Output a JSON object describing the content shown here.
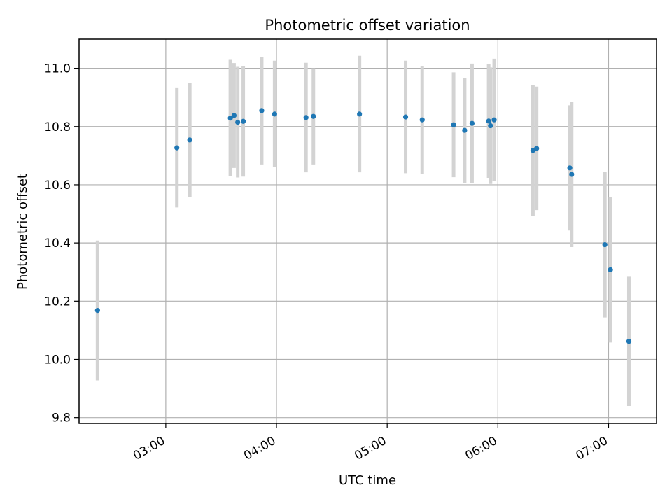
{
  "chart_data": {
    "type": "scatter",
    "title": "Photometric offset variation",
    "xlabel": "UTC time",
    "ylabel": "Photometric offset",
    "grid": true,
    "xlim": [
      "02:13",
      "07:26"
    ],
    "ylim": [
      9.78,
      11.1
    ],
    "x_ticks": [
      "03:00",
      "04:00",
      "05:00",
      "06:00",
      "07:00"
    ],
    "y_ticks": [
      "9.8",
      "10.0",
      "10.2",
      "10.4",
      "10.6",
      "10.8",
      "11.0"
    ],
    "point_color": "#1f77b4",
    "errorbar_color": "#d3d3d3",
    "points": [
      {
        "x": "02:23",
        "y": 10.168,
        "yerr": 0.24
      },
      {
        "x": "03:06",
        "y": 10.727,
        "yerr": 0.205
      },
      {
        "x": "03:13",
        "y": 10.754,
        "yerr": 0.195
      },
      {
        "x": "03:35",
        "y": 10.829,
        "yerr": 0.2
      },
      {
        "x": "03:37",
        "y": 10.838,
        "yerr": 0.18
      },
      {
        "x": "03:39",
        "y": 10.815,
        "yerr": 0.19
      },
      {
        "x": "03:42",
        "y": 10.818,
        "yerr": 0.19
      },
      {
        "x": "03:52",
        "y": 10.855,
        "yerr": 0.185
      },
      {
        "x": "03:59",
        "y": 10.843,
        "yerr": 0.183
      },
      {
        "x": "04:16",
        "y": 10.831,
        "yerr": 0.188
      },
      {
        "x": "04:20",
        "y": 10.835,
        "yerr": 0.165
      },
      {
        "x": "04:45",
        "y": 10.843,
        "yerr": 0.2
      },
      {
        "x": "05:10",
        "y": 10.833,
        "yerr": 0.193
      },
      {
        "x": "05:19",
        "y": 10.823,
        "yerr": 0.185
      },
      {
        "x": "05:36",
        "y": 10.806,
        "yerr": 0.18
      },
      {
        "x": "05:42",
        "y": 10.787,
        "yerr": 0.18
      },
      {
        "x": "05:46",
        "y": 10.811,
        "yerr": 0.205
      },
      {
        "x": "05:55",
        "y": 10.819,
        "yerr": 0.195
      },
      {
        "x": "05:56",
        "y": 10.803,
        "yerr": 0.2
      },
      {
        "x": "05:58",
        "y": 10.823,
        "yerr": 0.21
      },
      {
        "x": "06:19",
        "y": 10.718,
        "yerr": 0.225
      },
      {
        "x": "06:21",
        "y": 10.725,
        "yerr": 0.212
      },
      {
        "x": "06:39",
        "y": 10.658,
        "yerr": 0.215
      },
      {
        "x": "06:40",
        "y": 10.636,
        "yerr": 0.25
      },
      {
        "x": "06:58",
        "y": 10.394,
        "yerr": 0.25
      },
      {
        "x": "07:01",
        "y": 10.308,
        "yerr": 0.25
      },
      {
        "x": "07:11",
        "y": 10.062,
        "yerr": 0.222
      }
    ]
  }
}
